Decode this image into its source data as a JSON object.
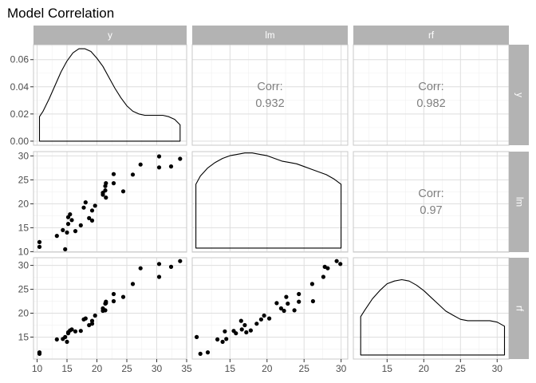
{
  "chart_data": {
    "type": "scatter",
    "title": "Model Correlation",
    "variables": [
      "y",
      "lm",
      "rf"
    ],
    "axis_ranges": {
      "y": [
        9.4,
        35.0
      ],
      "lm": [
        9.9,
        30.9
      ],
      "rf": [
        10.4,
        31.6
      ]
    },
    "x_ticks": {
      "y": [
        10,
        15,
        20,
        25,
        30,
        35
      ],
      "lm": [
        15,
        20,
        25,
        30
      ],
      "rf": [
        15,
        20,
        25,
        30
      ]
    },
    "y_ticks": {
      "density": [
        "0.00",
        "0.02",
        "0.04",
        "0.06"
      ],
      "lm": [
        10,
        15,
        20,
        25,
        30
      ],
      "rf": [
        15,
        20,
        25,
        30
      ]
    },
    "density_ylim": [
      -0.003,
      0.071
    ],
    "grid": true,
    "corr_label": "Corr:",
    "correlations": [
      {
        "row": "y",
        "col": "lm",
        "value": "0.932"
      },
      {
        "row": "y",
        "col": "rf",
        "value": "0.982"
      },
      {
        "row": "lm",
        "col": "rf",
        "value": "0.97"
      }
    ],
    "densities": {
      "y": {
        "x": [
          10.4,
          11,
          12,
          13,
          14,
          15,
          16,
          17,
          18,
          19,
          20,
          21,
          22,
          23,
          24,
          25,
          26,
          27,
          28,
          29,
          30,
          31,
          32,
          33,
          33.9
        ],
        "d": [
          0.018,
          0.022,
          0.031,
          0.041,
          0.051,
          0.059,
          0.065,
          0.068,
          0.068,
          0.066,
          0.061,
          0.055,
          0.047,
          0.039,
          0.032,
          0.026,
          0.022,
          0.02,
          0.019,
          0.019,
          0.019,
          0.019,
          0.018,
          0.016,
          0.012
        ]
      },
      "lm": {
        "x": [
          10.4,
          11,
          12,
          13,
          14,
          15,
          16,
          17,
          18,
          19,
          20,
          21,
          22,
          23,
          24,
          25,
          26,
          27,
          28,
          29,
          30
        ],
        "d": [
          0.047,
          0.053,
          0.059,
          0.063,
          0.066,
          0.068,
          0.069,
          0.07,
          0.07,
          0.069,
          0.068,
          0.066,
          0.064,
          0.063,
          0.062,
          0.06,
          0.058,
          0.056,
          0.054,
          0.051,
          0.047
        ]
      },
      "rf": {
        "x": [
          11.4,
          12,
          13,
          14,
          15,
          16,
          17,
          18,
          19,
          20,
          21,
          22,
          23,
          24,
          25,
          26,
          27,
          28,
          29,
          30,
          31
        ],
        "d": [
          0.028,
          0.033,
          0.041,
          0.047,
          0.052,
          0.054,
          0.055,
          0.054,
          0.051,
          0.047,
          0.042,
          0.037,
          0.032,
          0.029,
          0.026,
          0.025,
          0.025,
          0.025,
          0.025,
          0.024,
          0.021
        ]
      }
    },
    "points": [
      {
        "y": 10.4,
        "lm": 11.0,
        "rf": 11.5
      },
      {
        "y": 10.4,
        "lm": 12.0,
        "rf": 11.8
      },
      {
        "y": 13.3,
        "lm": 13.3,
        "rf": 14.5
      },
      {
        "y": 14.3,
        "lm": 14.5,
        "rf": 14.6
      },
      {
        "y": 14.7,
        "lm": 10.5,
        "rf": 15.0
      },
      {
        "y": 15.0,
        "lm": 14.0,
        "rf": 14.0
      },
      {
        "y": 15.2,
        "lm": 15.8,
        "rf": 15.8
      },
      {
        "y": 15.2,
        "lm": 17.2,
        "rf": 16.0
      },
      {
        "y": 15.5,
        "lm": 17.8,
        "rf": 16.4
      },
      {
        "y": 15.8,
        "lm": 16.6,
        "rf": 16.6
      },
      {
        "y": 16.4,
        "lm": 14.3,
        "rf": 16.2
      },
      {
        "y": 17.3,
        "lm": 15.5,
        "rf": 16.3
      },
      {
        "y": 17.8,
        "lm": 19.2,
        "rf": 18.7
      },
      {
        "y": 18.1,
        "lm": 20.3,
        "rf": 18.9
      },
      {
        "y": 18.7,
        "lm": 17.0,
        "rf": 17.5
      },
      {
        "y": 19.2,
        "lm": 18.6,
        "rf": 17.8
      },
      {
        "y": 19.2,
        "lm": 16.5,
        "rf": 18.4
      },
      {
        "y": 19.7,
        "lm": 19.6,
        "rf": 19.5
      },
      {
        "y": 21.0,
        "lm": 22.3,
        "rf": 20.5
      },
      {
        "y": 21.0,
        "lm": 21.9,
        "rf": 21.0
      },
      {
        "y": 21.4,
        "lm": 23.7,
        "rf": 20.6
      },
      {
        "y": 21.4,
        "lm": 22.8,
        "rf": 22.0
      },
      {
        "y": 21.5,
        "lm": 24.3,
        "rf": 22.4
      },
      {
        "y": 21.5,
        "lm": 21.3,
        "rf": 22.1
      },
      {
        "y": 22.8,
        "lm": 26.2,
        "rf": 22.5
      },
      {
        "y": 22.8,
        "lm": 24.3,
        "rf": 24.0
      },
      {
        "y": 24.4,
        "lm": 22.6,
        "rf": 23.4
      },
      {
        "y": 26.0,
        "lm": 26.1,
        "rf": 26.1
      },
      {
        "y": 27.3,
        "lm": 28.2,
        "rf": 29.4
      },
      {
        "y": 30.4,
        "lm": 27.6,
        "rf": 27.6
      },
      {
        "y": 30.4,
        "lm": 29.9,
        "rf": 30.3
      },
      {
        "y": 32.4,
        "lm": 27.8,
        "rf": 29.7
      },
      {
        "y": 33.9,
        "lm": 29.4,
        "rf": 30.9
      }
    ]
  }
}
